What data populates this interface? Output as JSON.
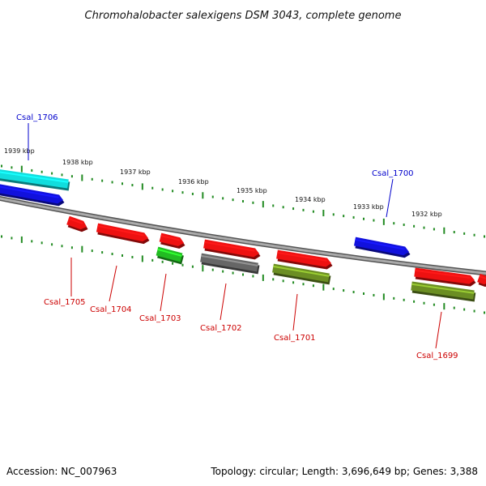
{
  "title": "Chromohalobacter salexigens DSM 3043, complete genome",
  "footer": {
    "accession": "Accession: NC_007963",
    "summary": "Topology: circular; Length: 3,696,649 bp; Genes: 3,388"
  },
  "ticks": [
    "1939 kbp",
    "1938 kbp",
    "1937 kbp",
    "1936 kbp",
    "1935 kbp",
    "1934 kbp",
    "1933 kbp",
    "1932 kbp"
  ],
  "colors": {
    "red": "#ee1111",
    "blue": "#1111dd",
    "cyan": "#11dddd",
    "green": "#22bb22",
    "olive": "#6b8e23",
    "gray": "#666666",
    "backbone": "#888888",
    "tick": "#228b22",
    "label_blue": "#0000cc",
    "label_red": "#cc0000"
  },
  "genes": [
    {
      "name": "Csal_1706",
      "strand": "forward",
      "color": "cyan",
      "label_color": "label_blue"
    },
    {
      "name": "",
      "strand": "forward",
      "color": "blue",
      "label_color": "label_blue"
    },
    {
      "name": "Csal_1705",
      "strand": "reverse",
      "color": "red",
      "label_color": "label_red"
    },
    {
      "name": "Csal_1704",
      "strand": "reverse",
      "color": "red",
      "label_color": "label_red"
    },
    {
      "name": "",
      "strand": "reverse",
      "color": "red",
      "label_color": "label_red"
    },
    {
      "name": "Csal_1703",
      "strand": "reverse",
      "color": "green",
      "label_color": "label_red"
    },
    {
      "name": "",
      "strand": "reverse",
      "color": "red",
      "label_color": "label_red"
    },
    {
      "name": "Csal_1702",
      "strand": "reverse",
      "color": "gray",
      "label_color": "label_red"
    },
    {
      "name": "",
      "strand": "reverse",
      "color": "red",
      "label_color": "label_red"
    },
    {
      "name": "Csal_1701",
      "strand": "reverse",
      "color": "olive",
      "label_color": "label_red"
    },
    {
      "name": "Csal_1700",
      "strand": "forward",
      "color": "blue",
      "label_color": "label_blue"
    },
    {
      "name": "",
      "strand": "reverse",
      "color": "red",
      "label_color": "label_red"
    },
    {
      "name": "Csal_1699",
      "strand": "reverse",
      "color": "olive",
      "label_color": "label_red"
    },
    {
      "name": "",
      "strand": "reverse",
      "color": "red",
      "label_color": "label_red"
    }
  ]
}
